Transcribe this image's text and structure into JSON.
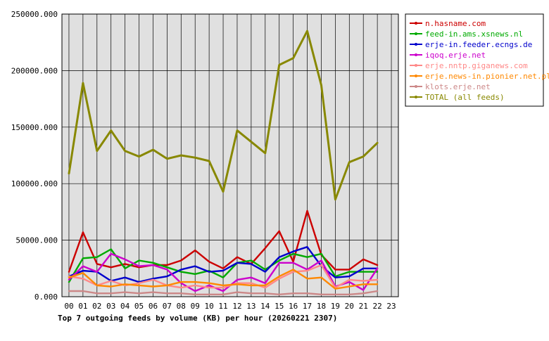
{
  "chart_data": {
    "type": "line",
    "title": "Top 7 outgoing feeds by volume (KB) per hour (20260221 2307)",
    "xlabel": "",
    "ylabel": "",
    "categories": [
      "00",
      "01",
      "02",
      "03",
      "04",
      "05",
      "06",
      "07",
      "08",
      "09",
      "10",
      "11",
      "12",
      "13",
      "14",
      "15",
      "16",
      "17",
      "18",
      "19",
      "20",
      "21",
      "22",
      "23"
    ],
    "ylim": [
      0,
      250000
    ],
    "yticks": [
      0,
      50000,
      100000,
      150000,
      200000,
      250000
    ],
    "ytick_labels": [
      "0.000",
      "50000.000",
      "100000.000",
      "150000.000",
      "200000.000",
      "250000.000"
    ],
    "grid": true,
    "legend_position": "right",
    "series": [
      {
        "name": "n.hasname.com",
        "color": "#cc0000",
        "values": [
          22000,
          57000,
          29000,
          26000,
          29000,
          26000,
          28000,
          28000,
          32000,
          41000,
          31000,
          25000,
          35000,
          29000,
          43000,
          58000,
          31000,
          76000,
          37000,
          24000,
          24000,
          33000,
          28000,
          null
        ]
      },
      {
        "name": "feed-in.ams.xsnews.nl",
        "color": "#00aa00",
        "values": [
          13000,
          34000,
          35000,
          42000,
          25000,
          32000,
          30000,
          26000,
          22000,
          20000,
          23000,
          17000,
          30000,
          32000,
          24000,
          32000,
          38000,
          35000,
          38000,
          18000,
          22000,
          22000,
          22000,
          null
        ]
      },
      {
        "name": "erje-in.feeder.ecngs.de",
        "color": "#0000cc",
        "values": [
          18000,
          23000,
          22000,
          14000,
          17000,
          13000,
          16000,
          18000,
          24000,
          27000,
          22000,
          23000,
          30000,
          29000,
          22000,
          35000,
          40000,
          44000,
          27000,
          17000,
          18000,
          25000,
          25000,
          null
        ]
      },
      {
        "name": "iqoq.erje.net",
        "color": "#cc00cc",
        "values": [
          15000,
          27000,
          22000,
          38000,
          33000,
          27000,
          28000,
          24000,
          12000,
          5000,
          10000,
          5000,
          15000,
          17000,
          12000,
          30000,
          30000,
          24000,
          32000,
          9000,
          13000,
          6000,
          25000,
          null
        ]
      },
      {
        "name": "erje.nntp.giganews.com",
        "color": "#ff8888",
        "values": [
          18000,
          16000,
          10000,
          14000,
          10000,
          12000,
          15000,
          10000,
          8000,
          10000,
          8000,
          8000,
          12000,
          12000,
          8000,
          16000,
          22000,
          23000,
          28000,
          8000,
          15000,
          14000,
          15000,
          null
        ]
      },
      {
        "name": "erje.news-in.pionier.net.pl",
        "color": "#ff8800",
        "values": [
          17000,
          21000,
          10000,
          9000,
          11000,
          10000,
          9000,
          10000,
          13000,
          13000,
          12000,
          10000,
          11000,
          10000,
          10000,
          18000,
          24000,
          16000,
          17000,
          7000,
          9000,
          11000,
          11000,
          null
        ]
      },
      {
        "name": "klots.erje.net",
        "color": "#cc8888",
        "values": [
          5000,
          5000,
          3000,
          3000,
          4000,
          3000,
          4000,
          3000,
          3000,
          2000,
          2000,
          2000,
          4000,
          3000,
          3000,
          2000,
          3000,
          3000,
          2000,
          2000,
          2000,
          3000,
          5000,
          null
        ]
      },
      {
        "name": "TOTAL (all feeds)",
        "color": "#888800",
        "values": [
          109000,
          189000,
          129000,
          147000,
          129000,
          124000,
          130000,
          122000,
          125000,
          123000,
          120000,
          93000,
          147000,
          137000,
          127000,
          205000,
          211000,
          235000,
          187000,
          86000,
          119000,
          124000,
          136000,
          null
        ]
      }
    ]
  }
}
